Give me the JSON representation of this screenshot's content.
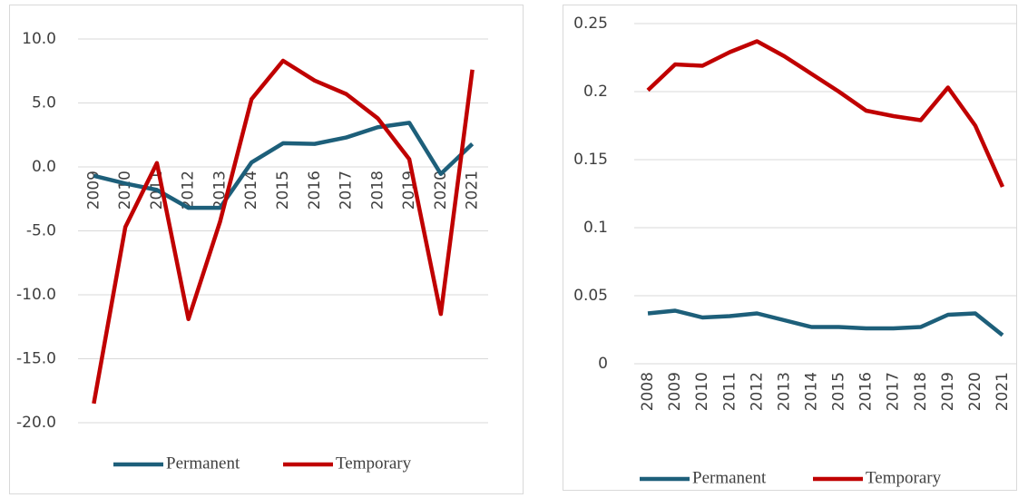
{
  "chart_data": [
    {
      "type": "line",
      "categories": [
        "2009",
        "2010",
        "2011",
        "2012",
        "2013",
        "2014",
        "2015",
        "2016",
        "2017",
        "2018",
        "2019",
        "2020",
        "2021"
      ],
      "series": [
        {
          "name": "Permanent",
          "color": "#1d5f7a",
          "values": [
            -0.7,
            -1.3,
            -1.8,
            -3.2,
            -3.2,
            0.35,
            1.85,
            1.8,
            2.3,
            3.1,
            3.45,
            -0.55,
            1.8
          ]
        },
        {
          "name": "Temporary",
          "color": "#c00000",
          "values": [
            -18.5,
            -4.7,
            0.3,
            -11.9,
            -4.3,
            5.3,
            8.3,
            6.75,
            5.7,
            3.8,
            0.6,
            -11.5,
            7.6
          ]
        }
      ],
      "ylim": [
        -20,
        10
      ],
      "yticks": [
        {
          "value": -20,
          "label": "-20.0"
        },
        {
          "value": -15,
          "label": "-15.0"
        },
        {
          "value": -10,
          "label": "-10.0"
        },
        {
          "value": -5,
          "label": "-5.0"
        },
        {
          "value": 0,
          "label": "0.0"
        },
        {
          "value": 5,
          "label": "5.0"
        },
        {
          "value": 10,
          "label": "10.0"
        }
      ],
      "grid": true,
      "legend": "bottom"
    },
    {
      "type": "line",
      "categories": [
        "2008",
        "2009",
        "2010",
        "2011",
        "2012",
        "2013",
        "2014",
        "2015",
        "2016",
        "2017",
        "2018",
        "2019",
        "2020",
        "2021"
      ],
      "series": [
        {
          "name": "Permanent",
          "color": "#1d5f7a",
          "values": [
            0.037,
            0.039,
            0.034,
            0.035,
            0.037,
            0.032,
            0.027,
            0.027,
            0.026,
            0.026,
            0.027,
            0.036,
            0.037,
            0.021
          ]
        },
        {
          "name": "Temporary",
          "color": "#c00000",
          "values": [
            0.201,
            0.22,
            0.219,
            0.229,
            0.237,
            0.226,
            0.213,
            0.2,
            0.186,
            0.182,
            0.179,
            0.203,
            0.175,
            0.13
          ]
        }
      ],
      "ylim": [
        0,
        0.25
      ],
      "yticks": [
        0,
        0.05,
        0.1,
        0.15,
        0.2,
        0.25
      ],
      "grid": true,
      "legend": "bottom"
    }
  ]
}
